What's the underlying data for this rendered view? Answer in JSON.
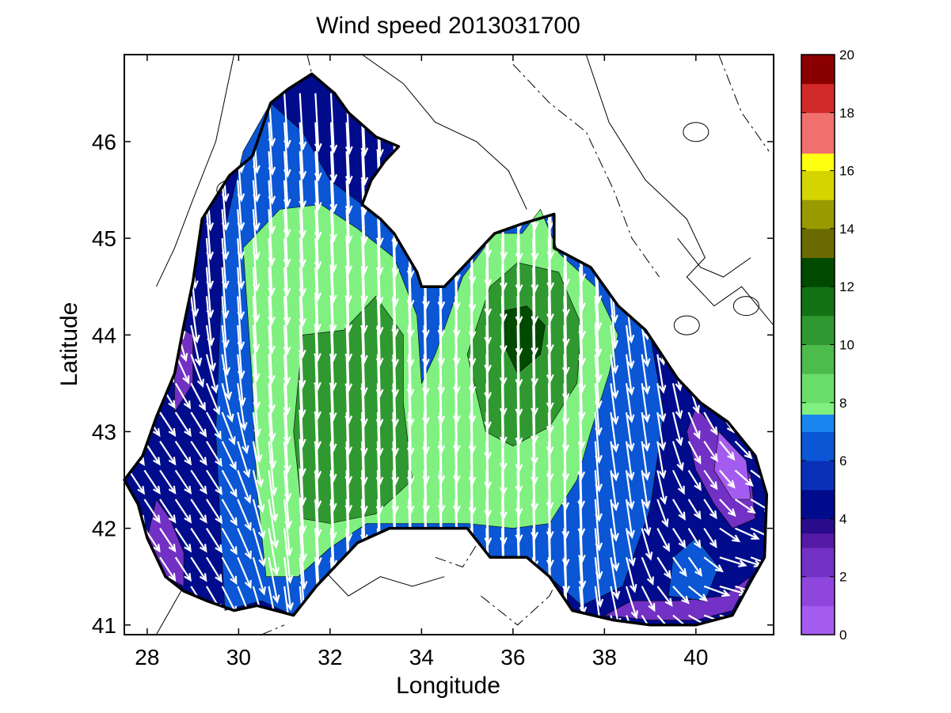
{
  "title": "Wind speed 2013031700",
  "x_axis": {
    "label": "Longitude",
    "min": 27.5,
    "max": 41.7,
    "ticks": [
      28,
      30,
      32,
      34,
      36,
      38,
      40
    ],
    "tick_labels": [
      "28",
      "30",
      "32",
      "34",
      "36",
      "38",
      "40"
    ]
  },
  "y_axis": {
    "label": "Latitude",
    "min": 40.9,
    "max": 46.9,
    "ticks": [
      41,
      42,
      43,
      44,
      45,
      46
    ],
    "tick_labels": [
      "41",
      "42",
      "43",
      "44",
      "45",
      "46"
    ]
  },
  "colorbar": {
    "min": 0,
    "max": 20,
    "ticks": [
      0,
      2,
      4,
      6,
      8,
      10,
      12,
      14,
      16,
      18,
      20
    ],
    "tick_labels": [
      "0",
      "2",
      "4",
      "6",
      "8",
      "10",
      "12",
      "14",
      "16",
      "18",
      "20"
    ],
    "levels": [
      {
        "from": 0,
        "to": 1,
        "color": "#a45cf0"
      },
      {
        "from": 1,
        "to": 2,
        "color": "#8e46dc"
      },
      {
        "from": 2,
        "to": 3,
        "color": "#7230c4"
      },
      {
        "from": 3,
        "to": 3.5,
        "color": "#541aa6"
      },
      {
        "from": 3.5,
        "to": 4,
        "color": "#2a0c8a"
      },
      {
        "from": 4,
        "to": 5,
        "color": "#000c8c"
      },
      {
        "from": 5,
        "to": 6,
        "color": "#0a30b8"
      },
      {
        "from": 6,
        "to": 7,
        "color": "#0a56d4"
      },
      {
        "from": 7,
        "to": 7.6,
        "color": "#1a86f0"
      },
      {
        "from": 7.6,
        "to": 8,
        "color": "#80f080"
      },
      {
        "from": 8,
        "to": 9,
        "color": "#6ade6a"
      },
      {
        "from": 9,
        "to": 10,
        "color": "#4cbc4c"
      },
      {
        "from": 10,
        "to": 11,
        "color": "#309830"
      },
      {
        "from": 11,
        "to": 12,
        "color": "#137213"
      },
      {
        "from": 12,
        "to": 13,
        "color": "#004a00"
      },
      {
        "from": 13,
        "to": 14,
        "color": "#6a6a00"
      },
      {
        "from": 14,
        "to": 15,
        "color": "#9a9a00"
      },
      {
        "from": 15,
        "to": 16,
        "color": "#d4d400"
      },
      {
        "from": 16,
        "to": 16.6,
        "color": "#ffff10"
      },
      {
        "from": 16.6,
        "to": 18,
        "color": "#f07070"
      },
      {
        "from": 18,
        "to": 19,
        "color": "#d22a2a"
      },
      {
        "from": 19,
        "to": 20,
        "color": "#8a0000"
      }
    ]
  },
  "colors": {
    "arrow": "#ffffff",
    "coast": "#000000",
    "contour": "#000000",
    "background": "#ffffff"
  },
  "chart_data": {
    "type": "heatmap",
    "subtype": "filled contour map with wind vectors",
    "title": "Wind speed 2013031700",
    "xlabel": "Longitude",
    "ylabel": "Latitude",
    "xlim": [
      27.5,
      41.7
    ],
    "ylim": [
      40.9,
      46.9
    ],
    "color_range": [
      0,
      20
    ],
    "speed_regions": [
      {
        "band": "3-4",
        "color": "#000c8c",
        "polygon": [
          [
            27.5,
            42.5
          ],
          [
            27.9,
            42.75
          ],
          [
            28.2,
            43.15
          ],
          [
            28.6,
            43.6
          ],
          [
            28.8,
            44.1
          ],
          [
            29.0,
            44.55
          ],
          [
            29.2,
            45.2
          ],
          [
            29.8,
            45.65
          ],
          [
            30.3,
            45.85
          ],
          [
            30.7,
            46.4
          ],
          [
            31.1,
            46.55
          ],
          [
            31.6,
            46.7
          ],
          [
            32.1,
            46.5
          ],
          [
            32.4,
            46.3
          ],
          [
            33.0,
            46.05
          ],
          [
            33.5,
            45.95
          ],
          [
            33.2,
            45.8
          ],
          [
            32.9,
            45.6
          ],
          [
            32.7,
            45.35
          ],
          [
            33.1,
            45.2
          ],
          [
            33.4,
            45.05
          ],
          [
            33.9,
            44.65
          ],
          [
            34.0,
            44.5
          ],
          [
            34.5,
            44.5
          ],
          [
            35.1,
            44.8
          ],
          [
            35.6,
            45.05
          ],
          [
            36.2,
            45.15
          ],
          [
            36.9,
            45.25
          ],
          [
            36.9,
            44.9
          ],
          [
            37.7,
            44.7
          ],
          [
            38.3,
            44.3
          ],
          [
            38.9,
            44.05
          ],
          [
            39.6,
            43.55
          ],
          [
            40.1,
            43.3
          ],
          [
            40.7,
            43.1
          ],
          [
            41.3,
            42.75
          ],
          [
            41.55,
            42.35
          ],
          [
            41.5,
            41.7
          ],
          [
            41.2,
            41.45
          ],
          [
            40.8,
            41.1
          ],
          [
            40.0,
            41.0
          ],
          [
            39.0,
            41.0
          ],
          [
            38.2,
            41.05
          ],
          [
            37.3,
            41.15
          ],
          [
            36.8,
            41.5
          ],
          [
            36.3,
            41.7
          ],
          [
            35.5,
            41.7
          ],
          [
            35.0,
            42.0
          ],
          [
            34.4,
            42.0
          ],
          [
            33.7,
            42.0
          ],
          [
            33.3,
            42.0
          ],
          [
            32.6,
            41.85
          ],
          [
            31.7,
            41.4
          ],
          [
            31.2,
            41.1
          ],
          [
            30.4,
            41.2
          ],
          [
            29.9,
            41.15
          ],
          [
            29.3,
            41.25
          ],
          [
            28.8,
            41.35
          ],
          [
            28.4,
            41.5
          ],
          [
            28.0,
            41.9
          ],
          [
            27.8,
            42.25
          ]
        ]
      },
      {
        "band": "0-3",
        "color": "#7230c4",
        "polygon": [
          [
            40.0,
            43.25
          ],
          [
            40.6,
            42.95
          ],
          [
            41.2,
            42.55
          ],
          [
            41.3,
            42.1
          ],
          [
            40.8,
            42.0
          ],
          [
            40.4,
            42.25
          ],
          [
            40.0,
            42.6
          ],
          [
            39.8,
            43.0
          ]
        ]
      },
      {
        "band": "0-1",
        "color": "#a45cf0",
        "polygon": [
          [
            40.5,
            43.0
          ],
          [
            41.1,
            42.7
          ],
          [
            41.2,
            42.3
          ],
          [
            40.8,
            42.3
          ],
          [
            40.4,
            42.6
          ]
        ]
      },
      {
        "band": "0-3",
        "color": "#7230c4",
        "polygon": [
          [
            38.0,
            41.1
          ],
          [
            39.0,
            41.05
          ],
          [
            40.0,
            41.05
          ],
          [
            40.8,
            41.15
          ],
          [
            41.2,
            41.5
          ],
          [
            40.6,
            41.3
          ],
          [
            39.6,
            41.25
          ],
          [
            38.6,
            41.25
          ]
        ]
      },
      {
        "band": "0-3",
        "color": "#7230c4",
        "polygon": [
          [
            28.0,
            41.9
          ],
          [
            28.4,
            41.5
          ],
          [
            28.8,
            41.4
          ],
          [
            28.8,
            41.75
          ],
          [
            28.5,
            42.1
          ],
          [
            28.2,
            42.3
          ]
        ]
      },
      {
        "band": "0-3",
        "color": "#7230c4",
        "polygon": [
          [
            28.6,
            43.2
          ],
          [
            29.0,
            43.5
          ],
          [
            29.0,
            44.0
          ],
          [
            28.8,
            44.05
          ],
          [
            28.6,
            43.6
          ]
        ]
      },
      {
        "band": "4-7",
        "color": "#0a56d4",
        "polygon": [
          [
            29.7,
            41.15
          ],
          [
            30.5,
            41.25
          ],
          [
            31.2,
            41.1
          ],
          [
            31.7,
            41.4
          ],
          [
            32.6,
            41.85
          ],
          [
            33.3,
            42.0
          ],
          [
            34.4,
            42.0
          ],
          [
            35.0,
            42.0
          ],
          [
            35.5,
            41.7
          ],
          [
            36.3,
            41.7
          ],
          [
            36.8,
            41.5
          ],
          [
            37.5,
            41.2
          ],
          [
            38.4,
            41.4
          ],
          [
            39.0,
            42.2
          ],
          [
            39.3,
            43.2
          ],
          [
            39.0,
            44.0
          ],
          [
            38.3,
            44.3
          ],
          [
            37.7,
            44.7
          ],
          [
            36.9,
            44.9
          ],
          [
            36.9,
            45.25
          ],
          [
            36.2,
            45.15
          ],
          [
            35.6,
            45.05
          ],
          [
            35.1,
            44.8
          ],
          [
            34.5,
            44.5
          ],
          [
            34.0,
            44.5
          ],
          [
            33.9,
            44.65
          ],
          [
            33.4,
            45.05
          ],
          [
            33.1,
            45.2
          ],
          [
            32.7,
            45.35
          ],
          [
            32.0,
            45.6
          ],
          [
            31.4,
            46.1
          ],
          [
            30.7,
            46.4
          ],
          [
            30.1,
            45.9
          ],
          [
            29.7,
            45.1
          ],
          [
            29.6,
            44.2
          ],
          [
            29.5,
            43.0
          ],
          [
            29.6,
            42.0
          ]
        ]
      },
      {
        "band": "4-7",
        "color": "#0a56d4",
        "polygon": [
          [
            39.4,
            41.3
          ],
          [
            40.2,
            41.25
          ],
          [
            40.5,
            41.6
          ],
          [
            40.0,
            41.9
          ],
          [
            39.5,
            41.7
          ]
        ]
      },
      {
        "band": "7.6-9",
        "color": "#80f080",
        "polygon": [
          [
            30.6,
            41.5
          ],
          [
            31.3,
            41.5
          ],
          [
            32.0,
            41.8
          ],
          [
            32.8,
            42.05
          ],
          [
            33.8,
            42.05
          ],
          [
            35.0,
            42.05
          ],
          [
            36.0,
            42.0
          ],
          [
            36.8,
            42.05
          ],
          [
            37.4,
            42.5
          ],
          [
            37.7,
            43.0
          ],
          [
            38.1,
            43.6
          ],
          [
            38.3,
            44.0
          ],
          [
            37.8,
            44.5
          ],
          [
            37.0,
            44.85
          ],
          [
            36.6,
            45.3
          ],
          [
            36.2,
            45.05
          ],
          [
            35.6,
            45.05
          ],
          [
            34.9,
            44.6
          ],
          [
            34.3,
            43.8
          ],
          [
            34.0,
            43.5
          ],
          [
            33.9,
            44.2
          ],
          [
            33.4,
            44.8
          ],
          [
            32.6,
            45.1
          ],
          [
            31.8,
            45.35
          ],
          [
            30.9,
            45.3
          ],
          [
            30.1,
            44.9
          ],
          [
            30.3,
            43.5
          ],
          [
            30.4,
            42.4
          ]
        ]
      },
      {
        "band": "9-11",
        "color": "#309830",
        "polygon": [
          [
            31.4,
            42.1
          ],
          [
            32.0,
            42.05
          ],
          [
            33.0,
            42.15
          ],
          [
            33.8,
            42.5
          ],
          [
            33.6,
            43.3
          ],
          [
            33.6,
            44.0
          ],
          [
            33.0,
            44.4
          ],
          [
            32.3,
            44.05
          ],
          [
            31.4,
            44.0
          ],
          [
            31.2,
            43.0
          ]
        ]
      },
      {
        "band": "9-11",
        "color": "#309830",
        "polygon": [
          [
            35.0,
            43.8
          ],
          [
            35.4,
            43.0
          ],
          [
            36.0,
            42.85
          ],
          [
            36.8,
            43.05
          ],
          [
            37.4,
            43.5
          ],
          [
            37.5,
            44.1
          ],
          [
            37.0,
            44.65
          ],
          [
            36.1,
            44.75
          ],
          [
            35.5,
            44.5
          ]
        ]
      },
      {
        "band": "12-13",
        "color": "#004a00",
        "polygon": [
          [
            35.8,
            43.9
          ],
          [
            36.1,
            43.6
          ],
          [
            36.6,
            43.8
          ],
          [
            36.7,
            44.1
          ],
          [
            36.3,
            44.3
          ],
          [
            35.8,
            44.25
          ]
        ]
      }
    ],
    "wind_vector_samples": [
      {
        "lon": 30.0,
        "lat": 45.5,
        "u": 0.5,
        "v": -6.5
      },
      {
        "lon": 31.0,
        "lat": 45.0,
        "u": 0.4,
        "v": -7.5
      },
      {
        "lon": 32.0,
        "lat": 44.5,
        "u": 0.3,
        "v": -8.5
      },
      {
        "lon": 33.0,
        "lat": 43.5,
        "u": 0.3,
        "v": -9.5
      },
      {
        "lon": 35.0,
        "lat": 44.0,
        "u": 0.2,
        "v": -9.0
      },
      {
        "lon": 36.0,
        "lat": 44.0,
        "u": 0.2,
        "v": -12.0
      },
      {
        "lon": 37.0,
        "lat": 43.0,
        "u": 0.2,
        "v": -9.0
      },
      {
        "lon": 38.5,
        "lat": 43.0,
        "u": 0.7,
        "v": -5.0
      },
      {
        "lon": 40.0,
        "lat": 42.0,
        "u": 1.5,
        "v": -2.5
      },
      {
        "lon": 40.5,
        "lat": 41.5,
        "u": 3.5,
        "v": -1.0
      },
      {
        "lon": 28.5,
        "lat": 42.5,
        "u": 2.0,
        "v": -3.0
      }
    ]
  }
}
